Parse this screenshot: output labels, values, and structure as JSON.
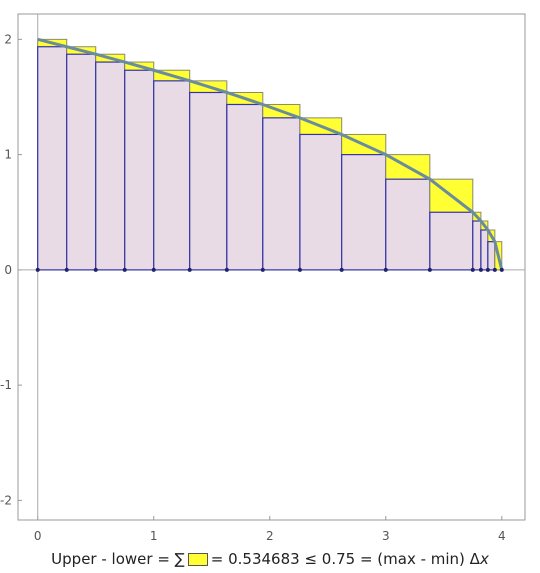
{
  "chart_data": {
    "type": "riemann",
    "partition": [
      0,
      0.25,
      0.5,
      0.75,
      1,
      1.31,
      1.63,
      1.94,
      2.26,
      2.62,
      3,
      3.38,
      3.75,
      3.82,
      3.88,
      3.94,
      4
    ],
    "values": [
      2,
      1.936,
      1.871,
      1.803,
      1.732,
      1.64,
      1.539,
      1.435,
      1.319,
      1.175,
      1,
      0.787,
      0.5,
      0.424,
      0.346,
      0.245,
      0
    ],
    "upper_color": "#ffff33",
    "lower_color": "#e9dbe5",
    "edge_color": "#3434a8",
    "curve_color": "#6a8c9c",
    "xlim": [
      -0.17,
      4.2
    ],
    "ylim": [
      -2.17,
      2.22
    ],
    "xticks": [
      0,
      1,
      2,
      3,
      4
    ],
    "yticks": [
      -2,
      -1,
      0,
      1,
      2
    ],
    "caption": {
      "left": "Upper - lower = ∑",
      "right": "= 0.534683 ≤ 0.75 = (max - min) Δ",
      "var": "x"
    }
  }
}
